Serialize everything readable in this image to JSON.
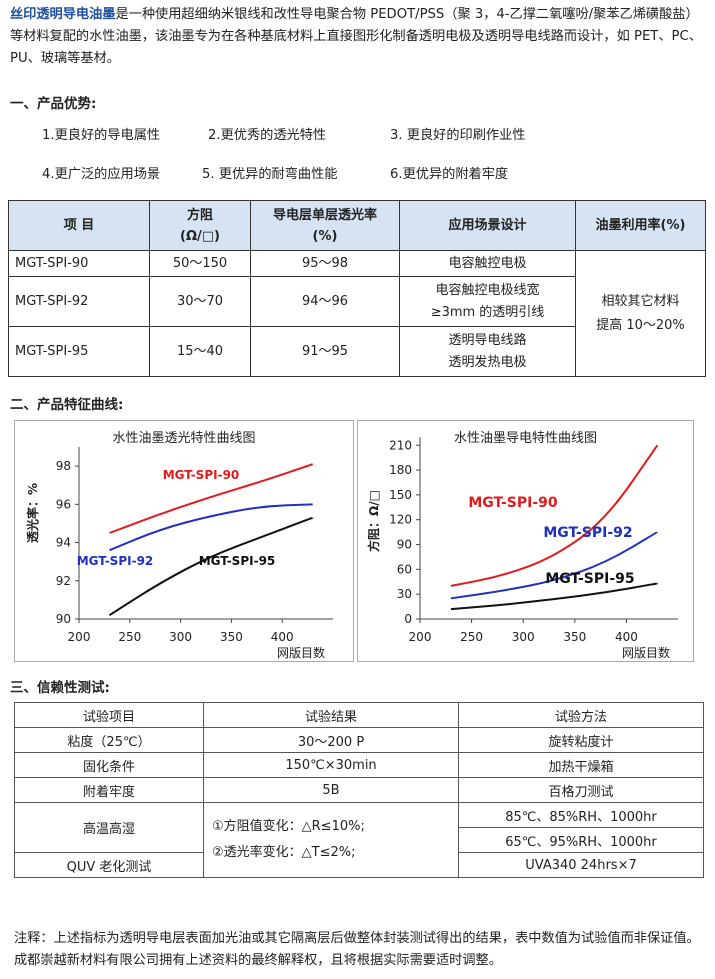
{
  "intro": {
    "brand": "丝印透明导电油墨",
    "text": "是一种使用超细纳米银线和改性导电聚合物 PEDOT/PSS（聚 3，4-乙撑二氧噻吩/聚苯乙烯磺酸盐）等材料复配的水性油墨，该油墨专为在各种基底材料上直接图形化制备透明电极及透明导电线路而设计，如 PET、PC、PU、玻璃等基材。"
  },
  "section1": "一、产品优势:",
  "advantages": [
    "1.更良好的导电属性",
    "2.更优秀的透光特性",
    "3. 更良好的印刷作业性",
    "4.更广泛的应用场景",
    "5. 更优异的耐弯曲性能",
    "6.更优异的附着牢度"
  ],
  "table1": {
    "headers": {
      "item": "项  目",
      "resistance": "方阻",
      "resistance_unit": "(Ω/□)",
      "trans": "导电层单层透光率",
      "trans_unit": "(%)",
      "app": "应用场景设计",
      "ink": "油墨利用率(%)"
    },
    "rows": [
      {
        "name": "MGT-SPI-90",
        "res": "50～150",
        "trans": "95～98",
        "app1": "电容触控电极",
        "app2": ""
      },
      {
        "name": "MGT-SPI-92",
        "res": "30～70",
        "trans": "94～96",
        "app1": "电容触控电极线宽",
        "app2": "≥3mm 的透明引线"
      },
      {
        "name": "MGT-SPI-95",
        "res": "15～40",
        "trans": "91～95",
        "app1": "透明导电线路",
        "app2": "透明发热电极"
      }
    ],
    "ink1": "相较其它材料",
    "ink2": "提高 10～20%"
  },
  "section2": "二、产品特征曲线:",
  "chart_data": [
    {
      "type": "line",
      "title": "水性油墨透光特性曲线图",
      "ylabel": "透光率：%",
      "xlabel": "网版目数",
      "xlim": [
        200,
        450
      ],
      "ylim": [
        90,
        99
      ],
      "xticks": [
        200,
        250,
        300,
        350,
        400
      ],
      "yticks": [
        90,
        92,
        94,
        96,
        98
      ],
      "series": [
        {
          "name": "MGT-SPI-90",
          "color": "#e31a1c",
          "points": [
            [
              230,
              94.5
            ],
            [
              280,
              95.5
            ],
            [
              330,
              96.4
            ],
            [
              380,
              97.2
            ],
            [
              430,
              98.1
            ]
          ]
        },
        {
          "name": "MGT-SPI-92",
          "color": "#1f2fbf",
          "points": [
            [
              230,
              93.6
            ],
            [
              280,
              94.7
            ],
            [
              330,
              95.4
            ],
            [
              380,
              95.9
            ],
            [
              430,
              96.0
            ]
          ]
        },
        {
          "name": "MGT-SPI-95",
          "color": "#111111",
          "points": [
            [
              230,
              90.2
            ],
            [
              280,
              91.9
            ],
            [
              330,
              93.3
            ],
            [
              380,
              94.3
            ],
            [
              430,
              95.3
            ]
          ]
        }
      ]
    },
    {
      "type": "line",
      "title": "水性油墨导电特性曲线图",
      "ylabel": "方阻：Ω/□",
      "xlabel": "网版目数",
      "xlim": [
        200,
        450
      ],
      "ylim": [
        0,
        220
      ],
      "xticks": [
        200,
        250,
        300,
        350,
        400
      ],
      "yticks": [
        0,
        30,
        60,
        90,
        120,
        150,
        180,
        210
      ],
      "series": [
        {
          "name": "MGT-SPI-90",
          "color": "#e31a1c",
          "points": [
            [
              230,
              40
            ],
            [
              280,
              52
            ],
            [
              330,
              75
            ],
            [
              380,
              120
            ],
            [
              430,
              210
            ]
          ]
        },
        {
          "name": "MGT-SPI-92",
          "color": "#1f2fbf",
          "points": [
            [
              230,
              25
            ],
            [
              280,
              34
            ],
            [
              330,
              46
            ],
            [
              380,
              68
            ],
            [
              430,
              105
            ]
          ]
        },
        {
          "name": "MGT-SPI-95",
          "color": "#111111",
          "points": [
            [
              230,
              12
            ],
            [
              280,
              17
            ],
            [
              330,
              24
            ],
            [
              380,
              32
            ],
            [
              430,
              43
            ]
          ]
        }
      ]
    }
  ],
  "section3": "三、信赖性测试:",
  "table2": {
    "headers": [
      "试验项目",
      "试验结果",
      "试验方法"
    ],
    "rows": [
      [
        "粘度（25℃）",
        "30～200 P",
        "旋转粘度计"
      ],
      [
        "固化条件",
        "150℃×30min",
        "加热干燥箱"
      ],
      [
        "附着牢度",
        "5B",
        "百格刀测试"
      ]
    ],
    "high_temp": "高温高湿",
    "quv": "QUV 老化测试",
    "result1": "①方阻值变化：△R≤10%;",
    "result2": "②透光率变化：△T≤2%;",
    "method1": "85℃、85%RH、1000hr",
    "method2": "65℃、95%RH、1000hr",
    "method3": "UVA340 24hrs×7"
  },
  "note": "注释：上述指标为透明导电层表面加光油或其它隔离层后做整体封装测试得出的结果，表中数值为试验值而非保证值。成都崇越新材料有限公司拥有上述资料的最终解释权，且将根据实际需要适时调整。"
}
